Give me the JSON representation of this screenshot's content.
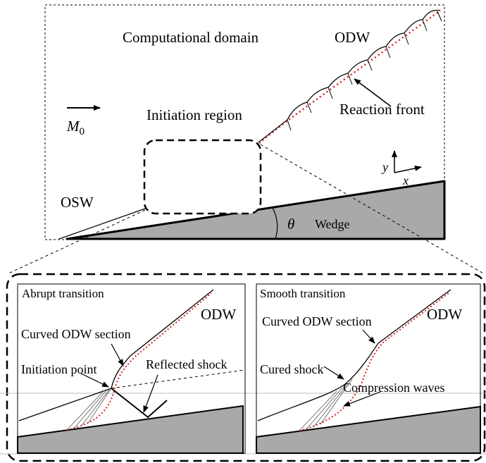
{
  "top": {
    "computational_domain": "Computational domain",
    "odw": "ODW",
    "mach_symbol": "M",
    "mach_subscript": "0",
    "initiation_region": "Initiation region",
    "reaction_front": "Reaction front",
    "osw": "OSW",
    "theta": "θ",
    "wedge": "Wedge",
    "axis_y": "y",
    "axis_x": "x"
  },
  "left_panel": {
    "title": "Abrupt transition",
    "odw": "ODW",
    "curved_odw_section": "Curved ODW section",
    "initiation_point": "Initiation point",
    "reflected_shock": "Reflected shock"
  },
  "right_panel": {
    "title": "Smooth transition",
    "odw": "ODW",
    "curved_odw_section": "Curved ODW section",
    "cured_shock": "Cured shock",
    "compression_waves": "Compression waves"
  },
  "colors": {
    "wedge_fill": "#a9a9a9",
    "reaction_front": "#d42020",
    "line": "#000000",
    "grid_gray": "#bdbdbd"
  }
}
